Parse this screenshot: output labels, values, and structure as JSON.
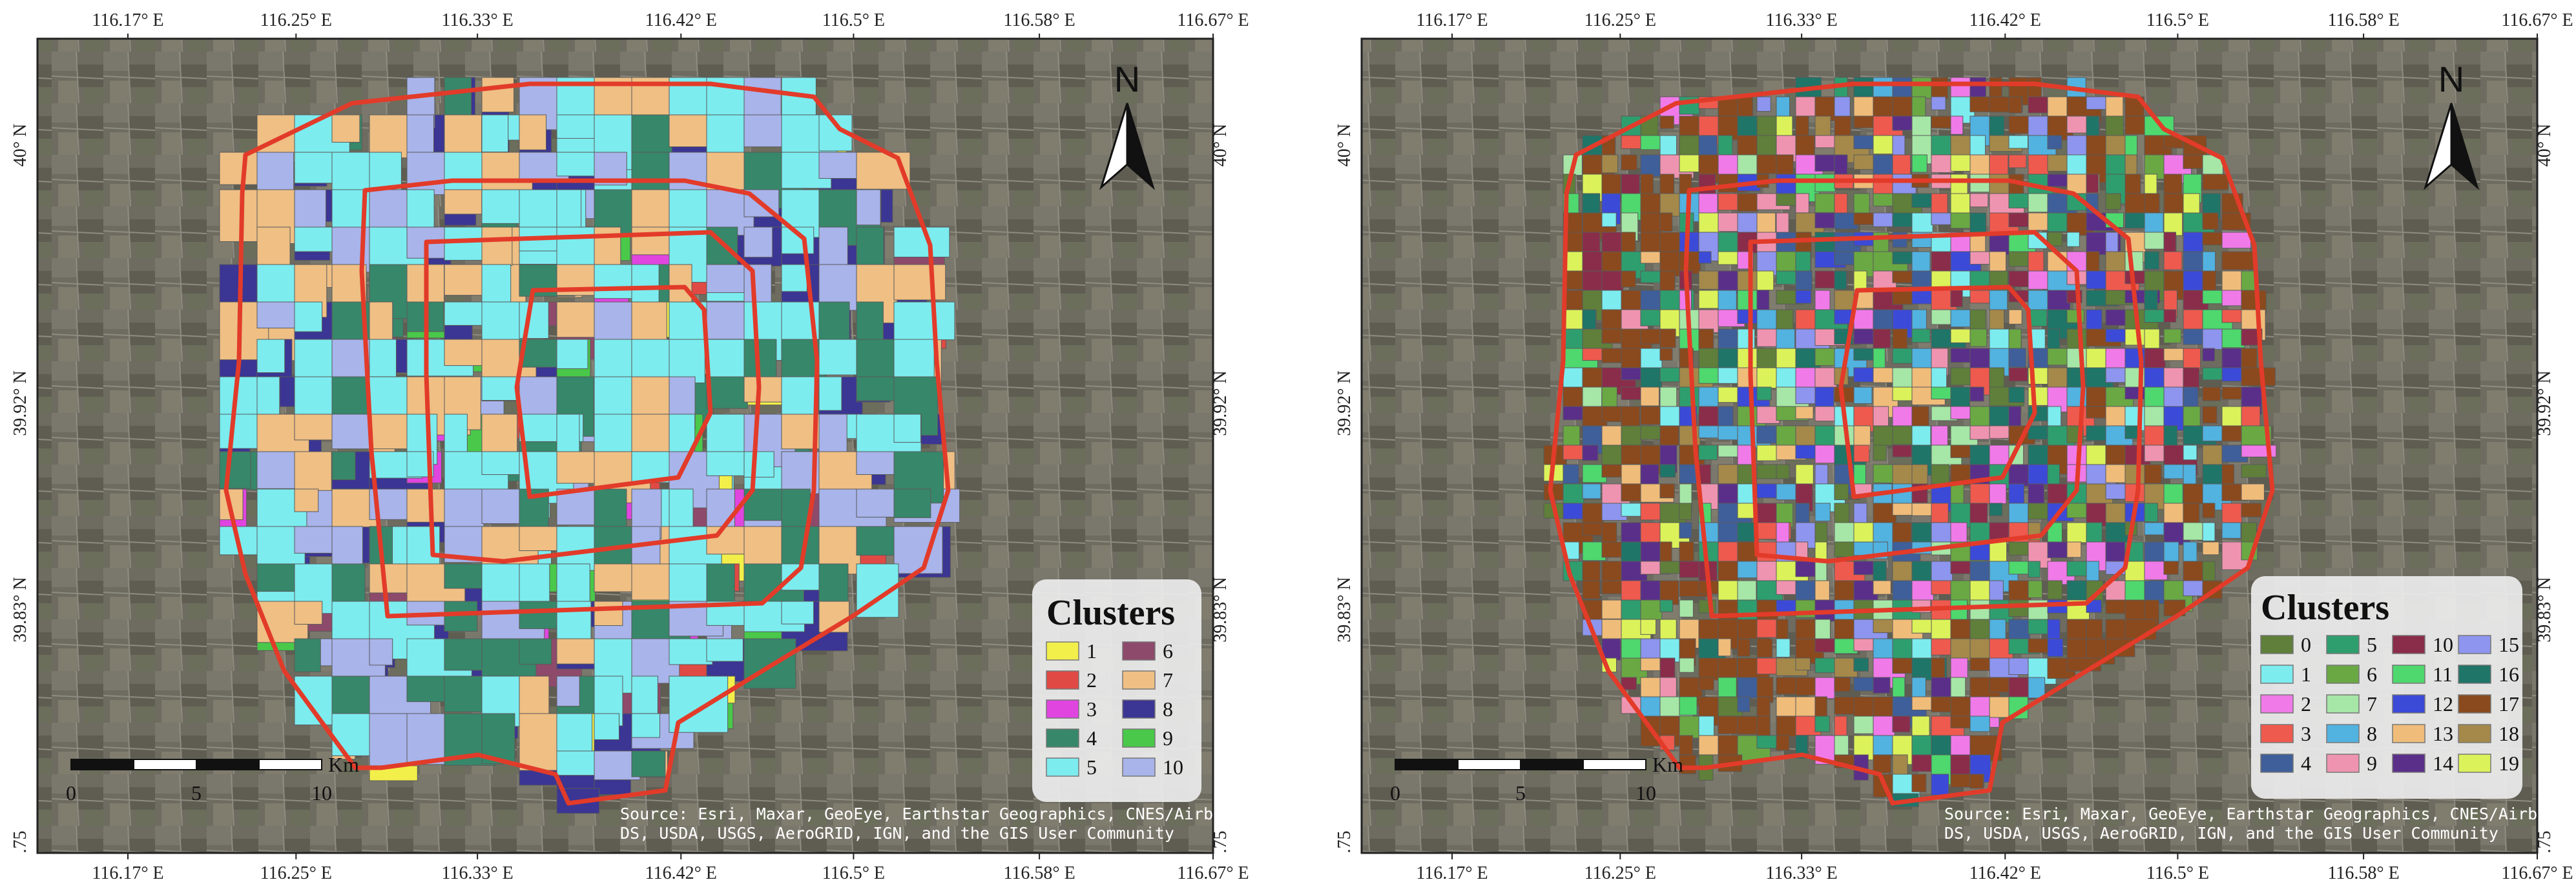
{
  "panels": [
    {
      "id": "left",
      "legend": {
        "title": "Clusters",
        "items": [
          {
            "label": "1",
            "color": "#f2ef4a"
          },
          {
            "label": "6",
            "color": "#8e4a6a"
          },
          {
            "label": "2",
            "color": "#e04a44"
          },
          {
            "label": "7",
            "color": "#efbf84"
          },
          {
            "label": "3",
            "color": "#e045e0"
          },
          {
            "label": "8",
            "color": "#3b3593"
          },
          {
            "label": "4",
            "color": "#37876a"
          },
          {
            "label": "9",
            "color": "#49c84a"
          },
          {
            "label": "5",
            "color": "#7cecef"
          },
          {
            "label": "10",
            "color": "#a8b4ea"
          }
        ]
      }
    },
    {
      "id": "right",
      "legend": {
        "title": "Clusters",
        "items": [
          {
            "label": "0",
            "color": "#5f7f3a"
          },
          {
            "label": "5",
            "color": "#2f9e6e"
          },
          {
            "label": "10",
            "color": "#8a2d4a"
          },
          {
            "label": "15",
            "color": "#8e95ee"
          },
          {
            "label": "1",
            "color": "#7cecef"
          },
          {
            "label": "6",
            "color": "#6aa844"
          },
          {
            "label": "11",
            "color": "#4ed86e"
          },
          {
            "label": "16",
            "color": "#1f7568"
          },
          {
            "label": "2",
            "color": "#f07ae8"
          },
          {
            "label": "7",
            "color": "#a6e6a6"
          },
          {
            "label": "12",
            "color": "#3c4ad8"
          },
          {
            "label": "17",
            "color": "#8a4a1e"
          },
          {
            "label": "3",
            "color": "#ef5a4e"
          },
          {
            "label": "8",
            "color": "#52b2e0"
          },
          {
            "label": "13",
            "color": "#efbc7a"
          },
          {
            "label": "18",
            "color": "#a4894a"
          },
          {
            "label": "4",
            "color": "#3f5f9a"
          },
          {
            "label": "9",
            "color": "#ef94b0"
          },
          {
            "label": "14",
            "color": "#5a2f8a"
          },
          {
            "label": "19",
            "color": "#dcf25a"
          }
        ]
      }
    }
  ],
  "axes": {
    "lon_ticks": [
      "116.17° E",
      "116.25° E",
      "116.33° E",
      "116.42° E",
      "116.5° E",
      "116.58° E",
      "116.67° E"
    ],
    "lat_ticks": [
      "40° N",
      "39.92° N",
      "39.83° N",
      ".75"
    ]
  },
  "north_arrow": {
    "label": "N"
  },
  "scale_bar": {
    "labels": [
      "0",
      "5",
      "10"
    ],
    "unit": "Km"
  },
  "attribution": {
    "line1": "Source: Esri, Maxar, GeoEye, Earthstar Geographics, CNES/Airbus",
    "line2": "DS, USDA, USGS, AeroGRID, IGN, and the GIS User Community"
  },
  "colors": {
    "boundary": "#e23b2a",
    "imagery_base": "#6d6a5f"
  }
}
